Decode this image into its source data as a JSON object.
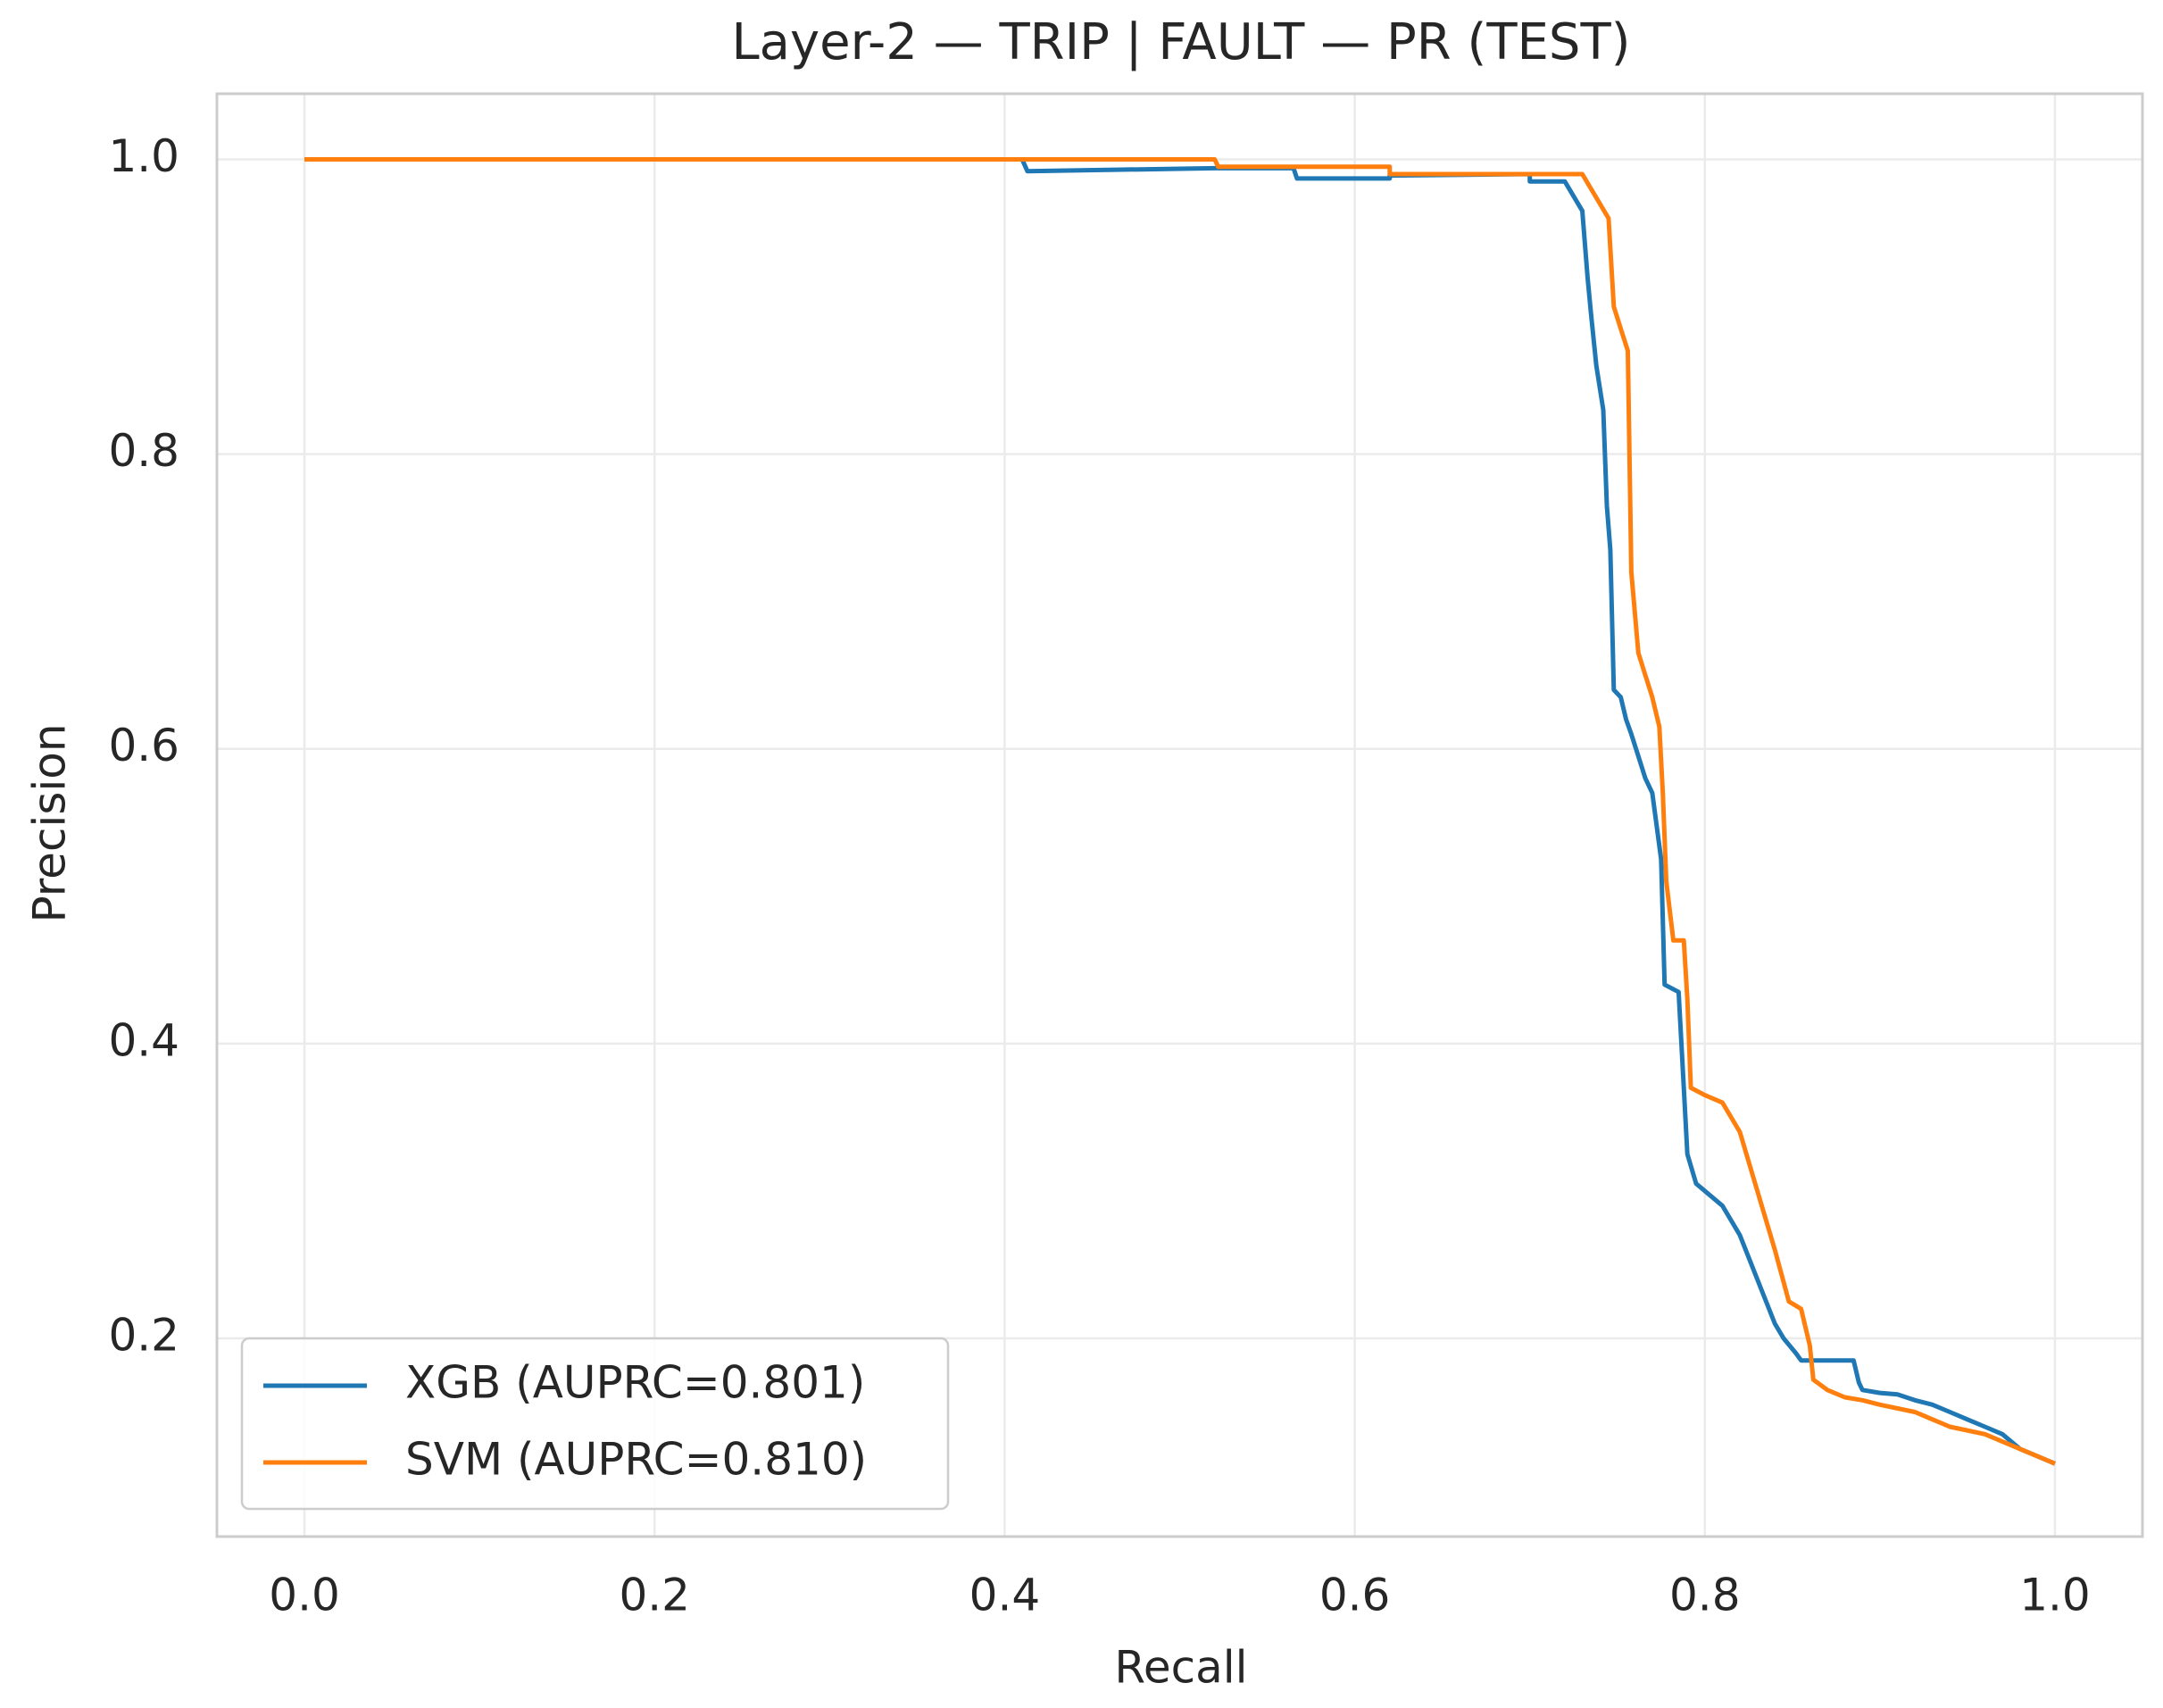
{
  "chart_data": {
    "type": "line",
    "title": "Layer-2 — TRIP | FAULT — PR (TEST)",
    "x_label": "Recall",
    "y_label": "Precision",
    "xlim": [
      -0.05,
      1.05
    ],
    "ylim": [
      0.0655,
      1.0445
    ],
    "xticks": [
      {
        "value": 0,
        "label": "0.0"
      },
      0.2,
      0.4,
      0.6,
      0.8,
      {
        "value": 1,
        "label": "1.0"
      }
    ],
    "yticks": [
      0.2,
      0.4,
      0.6,
      0.8,
      {
        "value": 1,
        "label": "1.0"
      }
    ],
    "grid": true,
    "legend": "lower left",
    "series": [
      {
        "name": "XGB (AUPRC=0.801)",
        "color": "#1f77b4",
        "x": [
          0,
          0.41,
          0.413,
          0.52,
          0.565,
          0.567,
          0.62,
          0.62,
          0.7,
          0.7,
          0.72,
          0.725,
          0.73,
          0.733,
          0.735,
          0.738,
          0.742,
          0.744,
          0.746,
          0.748,
          0.752,
          0.755,
          0.758,
          0.762,
          0.766,
          0.77,
          0.775,
          0.777,
          0.785,
          0.788,
          0.79,
          0.795,
          0.8,
          0.805,
          0.81,
          0.82,
          0.83,
          0.84,
          0.845,
          0.852,
          0.855,
          0.865,
          0.875,
          0.885,
          0.888,
          0.89,
          0.9,
          0.91,
          0.92,
          0.93,
          0.94,
          0.95,
          0.96,
          0.97,
          0.98,
          0.99,
          1.0
        ],
        "values": [
          1.0,
          1.0,
          0.992,
          0.994,
          0.994,
          0.987,
          0.987,
          0.989,
          0.99,
          0.985,
          0.985,
          0.975,
          0.965,
          0.92,
          0.895,
          0.86,
          0.83,
          0.765,
          0.735,
          0.64,
          0.635,
          0.62,
          0.61,
          0.595,
          0.58,
          0.57,
          0.525,
          0.44,
          0.435,
          0.37,
          0.325,
          0.305,
          0.3,
          0.295,
          0.29,
          0.27,
          0.24,
          0.21,
          0.2,
          0.19,
          0.185,
          0.185,
          0.185,
          0.185,
          0.17,
          0.165,
          0.163,
          0.162,
          0.158,
          0.155,
          0.15,
          0.145,
          0.14,
          0.135,
          0.125,
          0.12,
          0.115
        ]
      },
      {
        "name": "SVM (AUPRC=0.810)",
        "color": "#ff7f0e",
        "x": [
          0,
          0.52,
          0.522,
          0.62,
          0.62,
          0.7,
          0.73,
          0.735,
          0.74,
          0.745,
          0.748,
          0.752,
          0.756,
          0.758,
          0.762,
          0.766,
          0.77,
          0.774,
          0.776,
          0.778,
          0.782,
          0.788,
          0.79,
          0.792,
          0.8,
          0.81,
          0.82,
          0.83,
          0.84,
          0.848,
          0.855,
          0.86,
          0.862,
          0.87,
          0.88,
          0.89,
          0.9,
          0.92,
          0.94,
          0.96,
          0.98,
          1.0
        ],
        "values": [
          1.0,
          1.0,
          0.995,
          0.995,
          0.99,
          0.99,
          0.99,
          0.98,
          0.97,
          0.96,
          0.9,
          0.885,
          0.87,
          0.72,
          0.665,
          0.65,
          0.635,
          0.615,
          0.57,
          0.51,
          0.47,
          0.47,
          0.43,
          0.37,
          0.365,
          0.36,
          0.34,
          0.3,
          0.26,
          0.225,
          0.22,
          0.195,
          0.172,
          0.165,
          0.16,
          0.158,
          0.155,
          0.15,
          0.14,
          0.135,
          0.125,
          0.115
        ]
      }
    ]
  }
}
